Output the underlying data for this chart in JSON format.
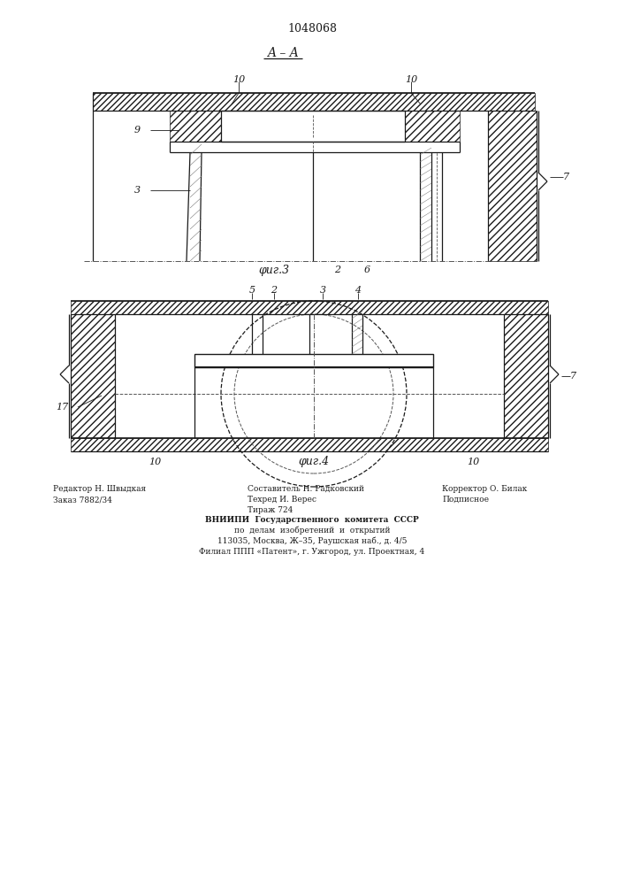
{
  "patent_number": "1048068",
  "title_aa": "A – A",
  "fig3_label": "φиг.3",
  "fig4_label": "φиг.4",
  "footer_left_col1": "Редактор Н. Швыдкая",
  "footer_left_col2": "Заказ 7882/34",
  "footer_mid_col1": "Составитель Н. Радковский",
  "footer_mid_col2": "Техред И. Верес",
  "footer_mid_col3": "Тираж 724",
  "footer_right_col1": "Корректор О. Билак",
  "footer_right_col2": "Подписное",
  "footer_center": [
    "ВНИИПИ  Государственного  комитета  СССР",
    "по  делам  изобретений  и  открытий",
    "113035, Москва, Ж–35, Раушская наб., д. 4/5",
    "Филиал ППП «Патент», г. Ужгород, ул. Проектная, 4"
  ],
  "bg_color": "#ffffff",
  "line_color": "#1a1a1a"
}
